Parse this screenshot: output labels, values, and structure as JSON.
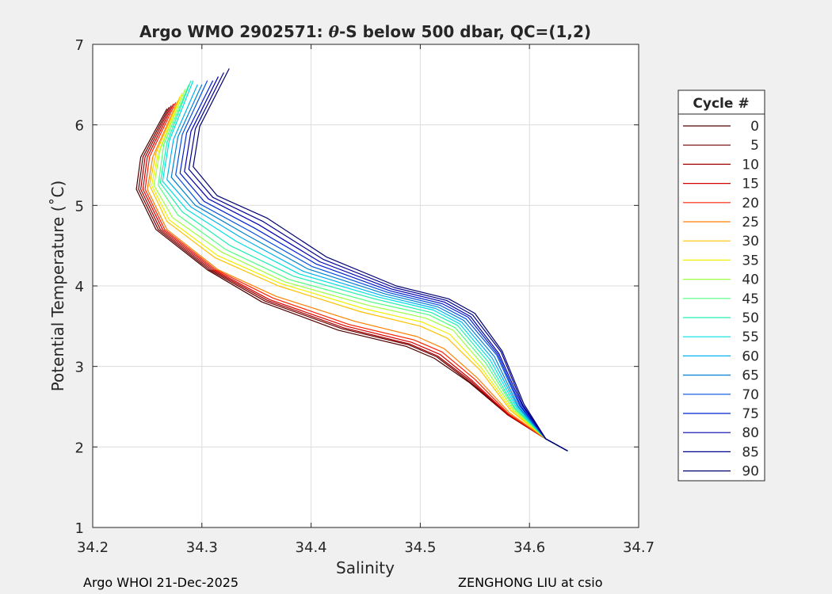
{
  "figure": {
    "footer_left": "Argo WHOI 21-Dec-2025",
    "footer_right": "ZENGHONG LIU at csio"
  },
  "chart_data": {
    "type": "line",
    "title_prefix": "Argo WMO 2902571: ",
    "title_theta": "θ",
    "title_suffix": "-S below 500 dbar,  QC=(1,2)",
    "xlabel": "Salinity",
    "ylabel": "Potential Temperature (˚C)",
    "xlim": [
      34.2,
      34.7
    ],
    "ylim": [
      1,
      7
    ],
    "xticks": [
      "34.2",
      "34.3",
      "34.4",
      "34.5",
      "34.6",
      "34.7"
    ],
    "yticks": [
      "1",
      "2",
      "3",
      "4",
      "5",
      "6",
      "7"
    ],
    "grid": true,
    "legend_title": "Cycle #",
    "legend_position": "right",
    "legend": [
      {
        "label": "0",
        "color": "#500000"
      },
      {
        "label": "5",
        "color": "#700000"
      },
      {
        "label": "10",
        "color": "#a00000"
      },
      {
        "label": "15",
        "color": "#d40000"
      },
      {
        "label": "20",
        "color": "#ff2000"
      },
      {
        "label": "25",
        "color": "#ff8000"
      },
      {
        "label": "30",
        "color": "#ffc000"
      },
      {
        "label": "35",
        "color": "#f0f000"
      },
      {
        "label": "40",
        "color": "#a0ff40"
      },
      {
        "label": "45",
        "color": "#50ff80"
      },
      {
        "label": "50",
        "color": "#20f0b0"
      },
      {
        "label": "55",
        "color": "#00e0e0"
      },
      {
        "label": "60",
        "color": "#00b0f0"
      },
      {
        "label": "65",
        "color": "#0080d0"
      },
      {
        "label": "70",
        "color": "#0050e0"
      },
      {
        "label": "75",
        "color": "#0020d0"
      },
      {
        "label": "80",
        "color": "#0000b0"
      },
      {
        "label": "85",
        "color": "#000090"
      },
      {
        "label": "90",
        "color": "#000070"
      }
    ],
    "series": [
      {
        "label": "0",
        "color": "#500000",
        "s": [
          34.268,
          34.244,
          34.24,
          34.258,
          34.305,
          34.355,
          34.425,
          34.487,
          34.513,
          34.545,
          34.58,
          34.615,
          34.635
        ],
        "t": [
          6.2,
          5.6,
          5.2,
          4.7,
          4.2,
          3.8,
          3.45,
          3.25,
          3.1,
          2.8,
          2.4,
          2.1,
          1.95
        ]
      },
      {
        "label": "5",
        "color": "#700000",
        "s": [
          34.27,
          34.246,
          34.242,
          34.26,
          34.307,
          34.358,
          34.428,
          34.489,
          34.515,
          34.546,
          34.58,
          34.615,
          34.635
        ],
        "t": [
          6.22,
          5.6,
          5.2,
          4.7,
          4.2,
          3.81,
          3.47,
          3.27,
          3.12,
          2.8,
          2.4,
          2.1,
          1.95
        ]
      },
      {
        "label": "10",
        "color": "#a00000",
        "s": [
          34.272,
          34.248,
          34.244,
          34.262,
          34.309,
          34.36,
          34.43,
          34.49,
          34.516,
          34.547,
          34.58,
          34.615,
          34.635
        ],
        "t": [
          6.24,
          5.6,
          5.2,
          4.7,
          4.2,
          3.82,
          3.48,
          3.28,
          3.13,
          2.81,
          2.4,
          2.1,
          1.95
        ]
      },
      {
        "label": "15",
        "color": "#d40000",
        "s": [
          34.274,
          34.25,
          34.246,
          34.264,
          34.311,
          34.362,
          34.432,
          34.492,
          34.518,
          34.548,
          34.58,
          34.615,
          34.635
        ],
        "t": [
          6.26,
          5.6,
          5.2,
          4.7,
          4.2,
          3.83,
          3.5,
          3.3,
          3.15,
          2.82,
          2.41,
          2.1,
          1.95
        ]
      },
      {
        "label": "20",
        "color": "#ff2000",
        "s": [
          34.276,
          34.252,
          34.248,
          34.266,
          34.313,
          34.365,
          34.435,
          34.494,
          34.52,
          34.55,
          34.581,
          34.615,
          34.635
        ],
        "t": [
          6.28,
          5.6,
          5.2,
          4.7,
          4.2,
          3.85,
          3.52,
          3.33,
          3.18,
          2.84,
          2.41,
          2.1,
          1.95
        ]
      },
      {
        "label": "25",
        "color": "#ff8000",
        "s": [
          34.278,
          34.255,
          34.25,
          34.268,
          34.315,
          34.368,
          34.44,
          34.497,
          34.522,
          34.552,
          34.582,
          34.615,
          34.635
        ],
        "t": [
          6.3,
          5.6,
          5.2,
          4.7,
          4.2,
          3.87,
          3.56,
          3.37,
          3.22,
          2.86,
          2.42,
          2.1,
          1.95
        ]
      },
      {
        "label": "30",
        "color": "#ffc000",
        "s": [
          34.28,
          34.258,
          34.252,
          34.268,
          34.312,
          34.37,
          34.445,
          34.5,
          34.525,
          34.555,
          34.583,
          34.615,
          34.635
        ],
        "t": [
          6.35,
          5.65,
          5.25,
          4.8,
          4.35,
          4.0,
          3.68,
          3.5,
          3.35,
          2.95,
          2.45,
          2.1,
          1.95
        ]
      },
      {
        "label": "35",
        "color": "#f0f000",
        "s": [
          34.282,
          34.26,
          34.254,
          34.27,
          34.314,
          34.372,
          34.448,
          34.502,
          34.527,
          34.556,
          34.584,
          34.615,
          34.635
        ],
        "t": [
          6.4,
          5.65,
          5.25,
          4.82,
          4.38,
          4.03,
          3.72,
          3.55,
          3.4,
          2.98,
          2.46,
          2.1,
          1.95
        ]
      },
      {
        "label": "40",
        "color": "#a0ff40",
        "s": [
          34.285,
          34.262,
          34.256,
          34.273,
          34.318,
          34.376,
          34.452,
          34.505,
          34.53,
          34.558,
          34.585,
          34.615,
          34.635
        ],
        "t": [
          6.45,
          5.7,
          5.25,
          4.85,
          4.42,
          4.05,
          3.76,
          3.6,
          3.45,
          3.01,
          2.47,
          2.1,
          1.95
        ]
      },
      {
        "label": "45",
        "color": "#50ff80",
        "s": [
          34.288,
          34.265,
          34.26,
          34.278,
          34.322,
          34.38,
          34.455,
          34.508,
          34.532,
          34.56,
          34.586,
          34.615,
          34.635
        ],
        "t": [
          6.5,
          5.75,
          5.25,
          4.88,
          4.45,
          4.08,
          3.8,
          3.64,
          3.48,
          3.04,
          2.48,
          2.1,
          1.95
        ]
      },
      {
        "label": "50",
        "color": "#20f0b0",
        "s": [
          34.29,
          34.268,
          34.262,
          34.282,
          34.326,
          34.384,
          34.458,
          34.51,
          34.534,
          34.562,
          34.587,
          34.615,
          34.635
        ],
        "t": [
          6.55,
          5.78,
          5.28,
          4.92,
          4.5,
          4.12,
          3.84,
          3.67,
          3.51,
          3.06,
          2.48,
          2.1,
          1.95
        ]
      },
      {
        "label": "55",
        "color": "#00e0e0",
        "s": [
          34.292,
          34.27,
          34.264,
          34.286,
          34.332,
          34.389,
          34.462,
          34.512,
          34.536,
          34.564,
          34.588,
          34.615,
          34.635
        ],
        "t": [
          6.55,
          5.8,
          5.3,
          4.95,
          4.55,
          4.15,
          3.86,
          3.7,
          3.53,
          3.08,
          2.49,
          2.1,
          1.95
        ]
      },
      {
        "label": "60",
        "color": "#00b0f0",
        "s": [
          34.296,
          34.274,
          34.268,
          34.29,
          34.336,
          34.393,
          34.465,
          34.514,
          34.538,
          34.566,
          34.589,
          34.615,
          34.635
        ],
        "t": [
          6.5,
          5.82,
          5.32,
          4.98,
          4.6,
          4.18,
          3.88,
          3.72,
          3.55,
          3.1,
          2.5,
          2.1,
          1.95
        ]
      },
      {
        "label": "65",
        "color": "#0080d0",
        "s": [
          34.3,
          34.278,
          34.272,
          34.294,
          34.34,
          34.397,
          34.468,
          34.516,
          34.54,
          34.568,
          34.59,
          34.615,
          34.635
        ],
        "t": [
          6.5,
          5.85,
          5.35,
          5.0,
          4.64,
          4.21,
          3.9,
          3.74,
          3.57,
          3.12,
          2.5,
          2.1,
          1.95
        ]
      },
      {
        "label": "70",
        "color": "#0050e0",
        "s": [
          34.305,
          34.282,
          34.276,
          34.298,
          34.344,
          34.401,
          34.47,
          34.518,
          34.542,
          34.57,
          34.591,
          34.615,
          34.635
        ],
        "t": [
          6.55,
          5.88,
          5.38,
          5.02,
          4.68,
          4.24,
          3.92,
          3.76,
          3.59,
          3.14,
          2.51,
          2.1,
          1.95
        ]
      },
      {
        "label": "75",
        "color": "#0020d0",
        "s": [
          34.31,
          34.286,
          34.28,
          34.302,
          34.348,
          34.405,
          34.472,
          34.52,
          34.544,
          34.571,
          34.592,
          34.615,
          34.635
        ],
        "t": [
          6.55,
          5.9,
          5.4,
          5.05,
          4.72,
          4.27,
          3.94,
          3.78,
          3.61,
          3.15,
          2.51,
          2.1,
          1.95
        ]
      },
      {
        "label": "80",
        "color": "#0000b0",
        "s": [
          34.315,
          34.29,
          34.284,
          34.306,
          34.352,
          34.408,
          34.474,
          34.522,
          34.546,
          34.572,
          34.593,
          34.615,
          34.635
        ],
        "t": [
          6.6,
          5.92,
          5.42,
          5.08,
          4.76,
          4.3,
          3.96,
          3.8,
          3.62,
          3.16,
          2.52,
          2.1,
          1.95
        ]
      },
      {
        "label": "85",
        "color": "#000090",
        "s": [
          34.32,
          34.294,
          34.288,
          34.31,
          34.356,
          34.411,
          34.476,
          34.524,
          34.548,
          34.574,
          34.594,
          34.615,
          34.635
        ],
        "t": [
          6.65,
          5.95,
          5.45,
          5.1,
          4.8,
          4.33,
          3.98,
          3.82,
          3.64,
          3.18,
          2.52,
          2.1,
          1.95
        ]
      },
      {
        "label": "90",
        "color": "#000070",
        "s": [
          34.325,
          34.298,
          34.292,
          34.314,
          34.36,
          34.414,
          34.478,
          34.526,
          34.55,
          34.575,
          34.595,
          34.615,
          34.635
        ],
        "t": [
          6.7,
          5.98,
          5.48,
          5.12,
          4.84,
          4.36,
          4.0,
          3.84,
          3.66,
          3.19,
          2.53,
          2.1,
          1.95
        ]
      }
    ]
  }
}
